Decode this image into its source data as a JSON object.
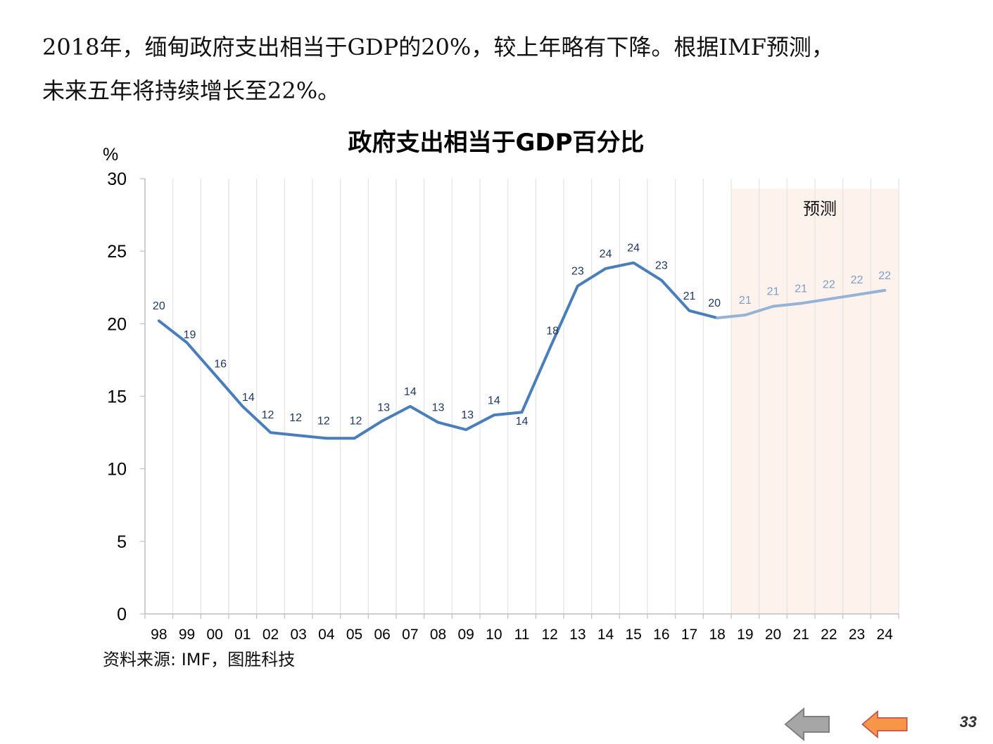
{
  "headline": {
    "line1": "2018年，缅甸政府支出相当于GDP的20%，较上年略有下降。根据IMF预测，",
    "line2": "未来五年将持续增长至22%。"
  },
  "source": "资料来源: IMF，图胜科技",
  "page_number": "33",
  "nav": {
    "back_icon": "left-arrow-icon-gray",
    "prev_icon": "left-arrow-icon-orange"
  },
  "colors": {
    "actual_line": "#4A7EBB",
    "forecast_line": "#95B3D7",
    "forecast_band": "#FDF3EC",
    "label_actual": "#1F3864",
    "label_forecast": "#7F9CC4",
    "nav_gray": "#A6A6A6",
    "nav_orange": "#F79646"
  },
  "chart_data": {
    "type": "line",
    "title": "政府支出相当于GDP百分比",
    "ylabel": "%",
    "ylim": [
      0,
      30
    ],
    "yticks": [
      0,
      5,
      10,
      15,
      20,
      25,
      30
    ],
    "grid": "vertical",
    "categories": [
      "98",
      "99",
      "00",
      "01",
      "02",
      "03",
      "04",
      "05",
      "06",
      "07",
      "08",
      "09",
      "10",
      "11",
      "12",
      "13",
      "14",
      "15",
      "16",
      "17",
      "18",
      "19",
      "20",
      "21",
      "22",
      "23",
      "24"
    ],
    "values": [
      20.2,
      18.7,
      16.5,
      14.3,
      12.5,
      12.3,
      12.1,
      12.1,
      13.3,
      14.3,
      13.2,
      12.7,
      13.7,
      13.9,
      18.3,
      22.6,
      23.8,
      24.2,
      23.0,
      20.9,
      20.4,
      20.6,
      21.2,
      21.4,
      21.7,
      22.0,
      22.3
    ],
    "data_labels": [
      "20",
      "19",
      "16",
      "14",
      "12",
      "12",
      "12",
      "12",
      "13",
      "14",
      "13",
      "13",
      "14",
      "14",
      "18",
      "23",
      "24",
      "24",
      "23",
      "21",
      "20",
      "21",
      "21",
      "21",
      "22",
      "22",
      "22"
    ],
    "forecast_start_index": 21,
    "forecast_label": "预测"
  }
}
